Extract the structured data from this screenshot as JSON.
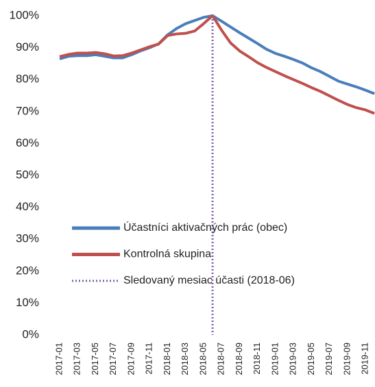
{
  "chart_data": {
    "type": "line",
    "categories": [
      "2017-01",
      null,
      "2017-03",
      null,
      "2017-05",
      null,
      "2017-07",
      null,
      "2017-09",
      null,
      "2017-11",
      null,
      "2018-01",
      null,
      "2018-03",
      null,
      "2018-05",
      null,
      "2018-07",
      null,
      "2018-09",
      null,
      "2018-11",
      null,
      "2019-01",
      null,
      "2019-03",
      null,
      "2019-05",
      null,
      "2019-07",
      null,
      "2019-09",
      null,
      "2019-11",
      null
    ],
    "series": [
      {
        "name": "Účastníci aktivačných prác (obec)",
        "color": "#4a7ebb",
        "values": [
          86.5,
          87.3,
          87.5,
          87.5,
          87.8,
          87.3,
          86.8,
          86.8,
          87.8,
          89,
          90,
          91.2,
          94,
          96,
          97.5,
          98.5,
          99.5,
          100,
          98.3,
          96.5,
          94.7,
          93,
          91.3,
          89.5,
          88.2,
          87.3,
          86.3,
          85.2,
          83.7,
          82.5,
          81,
          79.5,
          78.6,
          77.7,
          76.7,
          75.6
        ]
      },
      {
        "name": "Kontrolná skupina",
        "color": "#c0504d",
        "values": [
          87.2,
          87.9,
          88.3,
          88.3,
          88.5,
          88.1,
          87.4,
          87.5,
          88.3,
          89.3,
          90.3,
          91.1,
          93.8,
          94.3,
          94.5,
          95.2,
          97.5,
          100,
          95.5,
          91.5,
          89,
          87.2,
          85.3,
          83.8,
          82.5,
          81.2,
          80,
          78.8,
          77.5,
          76.3,
          74.9,
          73.5,
          72.2,
          71.2,
          70.5,
          69.4
        ]
      }
    ],
    "vline": {
      "name": "Sledovaný mesiac účasti (2018-06)",
      "at": 17,
      "color": "#7f62a8"
    },
    "ylim": [
      0,
      100
    ],
    "yticks": [
      {
        "value": 0,
        "label": "0%"
      },
      {
        "value": 10,
        "label": "10%"
      },
      {
        "value": 20,
        "label": "20%"
      },
      {
        "value": 30,
        "label": "30%"
      },
      {
        "value": 40,
        "label": "40%"
      },
      {
        "value": 50,
        "label": "50%"
      },
      {
        "value": 60,
        "label": "60%"
      },
      {
        "value": 70,
        "label": "70%"
      },
      {
        "value": 80,
        "label": "80%"
      },
      {
        "value": 90,
        "label": "90%"
      },
      {
        "value": 100,
        "label": "100%"
      }
    ],
    "grid": false,
    "legend": "bottom-left"
  }
}
